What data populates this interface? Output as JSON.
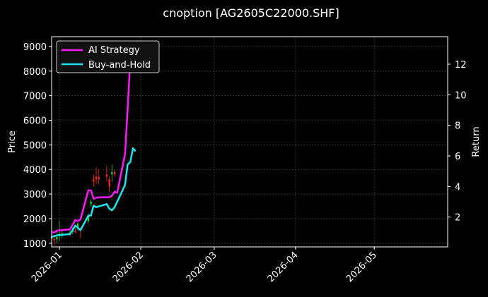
{
  "chart_data": {
    "type": "line",
    "title": "cnoption [AG2605C22000.SHF]",
    "ylabel": "Price",
    "y2label": "Return",
    "xlim": [
      "2025-12-29",
      "2026-05-29"
    ],
    "ylim": [
      850,
      9400
    ],
    "y2lim": [
      0.05,
      13.8
    ],
    "x_ticks": [
      "2026-01",
      "2026-02",
      "2026-03",
      "2026-04",
      "2026-05"
    ],
    "y_ticks": [
      1000,
      2000,
      3000,
      4000,
      5000,
      6000,
      7000,
      8000,
      9000
    ],
    "y2_ticks": [
      2,
      4,
      6,
      8,
      10,
      12
    ],
    "grid": true,
    "legend": "top-left",
    "colors": {
      "ai": "#ff19ff",
      "bh": "#19e8f5",
      "up": "#22cc22",
      "down": "#ff2222"
    },
    "series": [
      {
        "name": "AI Strategy",
        "axis": "right",
        "x": [
          "2025-12-29",
          "2025-12-30",
          "2025-12-31",
          "2026-01-01",
          "2026-01-02",
          "2026-01-05",
          "2026-01-06",
          "2026-01-07",
          "2026-01-08",
          "2026-01-09",
          "2026-01-12",
          "2026-01-13",
          "2026-01-14",
          "2026-01-15",
          "2026-01-16",
          "2026-01-19",
          "2026-01-20",
          "2026-01-21",
          "2026-01-22",
          "2026-01-23",
          "2026-01-26",
          "2026-01-27",
          "2026-01-28",
          "2026-01-29",
          "2026-01-30"
        ],
        "values": [
          1.0,
          1.0,
          1.1,
          1.15,
          1.15,
          1.2,
          1.5,
          1.8,
          1.75,
          1.85,
          3.75,
          3.75,
          3.2,
          3.25,
          3.3,
          3.3,
          3.3,
          3.4,
          3.65,
          3.6,
          6.1,
          9.1,
          12.4,
          13.3,
          13.1
        ]
      },
      {
        "name": "Buy-and-Hold",
        "axis": "right",
        "x": [
          "2025-12-29",
          "2025-12-30",
          "2025-12-31",
          "2026-01-01",
          "2026-01-02",
          "2026-01-05",
          "2026-01-06",
          "2026-01-07",
          "2026-01-08",
          "2026-01-09",
          "2026-01-12",
          "2026-01-13",
          "2026-01-14",
          "2026-01-15",
          "2026-01-16",
          "2026-01-19",
          "2026-01-20",
          "2026-01-21",
          "2026-01-22",
          "2026-01-23",
          "2026-01-26",
          "2026-01-27",
          "2026-01-28",
          "2026-01-29",
          "2026-01-30"
        ],
        "values": [
          0.7,
          0.75,
          0.8,
          0.82,
          0.84,
          0.9,
          1.15,
          1.45,
          1.3,
          1.15,
          2.1,
          2.1,
          2.75,
          2.65,
          2.7,
          2.85,
          2.55,
          2.45,
          2.65,
          3.0,
          4.1,
          5.45,
          5.6,
          6.5,
          6.3
        ]
      }
    ],
    "candles": [
      {
        "x": "2025-12-29",
        "open": 1200,
        "close": 1280,
        "high": 1420,
        "low": 1050
      },
      {
        "x": "2025-12-30",
        "open": 1180,
        "close": 1120,
        "high": 1350,
        "low": 900
      },
      {
        "x": "2025-12-31",
        "open": 1150,
        "close": 1250,
        "high": 1500,
        "low": 1000
      },
      {
        "x": "2026-01-01",
        "open": 1300,
        "close": 1380,
        "high": 1900,
        "low": 1100
      },
      {
        "x": "2026-01-02",
        "open": 1350,
        "close": 1400,
        "high": 1600,
        "low": 1200
      },
      {
        "x": "2026-01-05",
        "open": 1380,
        "close": 1420,
        "high": 1550,
        "low": 1300
      },
      {
        "x": "2026-01-06",
        "open": 1450,
        "close": 1500,
        "high": 1650,
        "low": 1380
      },
      {
        "x": "2026-01-07",
        "open": 1500,
        "close": 1450,
        "high": 1600,
        "low": 1400
      },
      {
        "x": "2026-01-08",
        "open": 1600,
        "close": 1800,
        "high": 1850,
        "low": 1500
      },
      {
        "x": "2026-01-09",
        "open": 1550,
        "close": 1500,
        "high": 1650,
        "low": 1200
      },
      {
        "x": "2026-01-12",
        "open": 1900,
        "close": 2100,
        "high": 2200,
        "low": 1800
      },
      {
        "x": "2026-01-13",
        "open": 2600,
        "close": 2700,
        "high": 2800,
        "low": 2500
      },
      {
        "x": "2026-01-14",
        "open": 3600,
        "close": 3500,
        "high": 3800,
        "low": 3300
      },
      {
        "x": "2026-01-15",
        "open": 3700,
        "close": 3600,
        "high": 4100,
        "low": 3400
      },
      {
        "x": "2026-01-16",
        "open": 3700,
        "close": 3600,
        "high": 4000,
        "low": 3400
      },
      {
        "x": "2026-01-19",
        "open": 3800,
        "close": 3700,
        "high": 4150,
        "low": 3500
      },
      {
        "x": "2026-01-20",
        "open": 3600,
        "close": 3300,
        "high": 3700,
        "low": 3100
      },
      {
        "x": "2026-01-21",
        "open": 3800,
        "close": 3900,
        "high": 4200,
        "low": 3500
      },
      {
        "x": "2026-01-22",
        "open": 3900,
        "close": 3800,
        "high": 4000,
        "low": 3700
      }
    ]
  }
}
